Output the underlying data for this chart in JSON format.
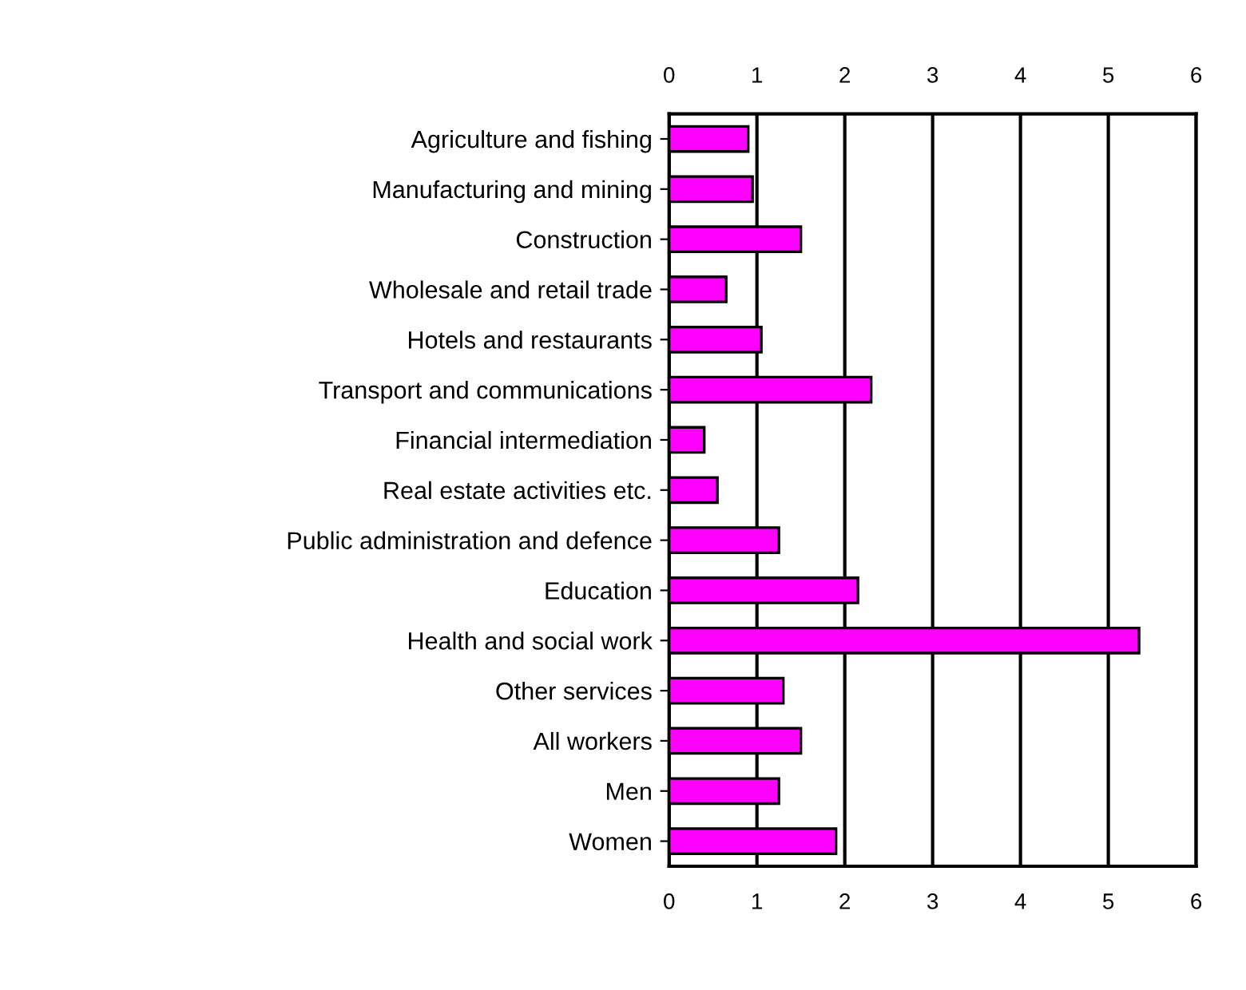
{
  "chart_data": {
    "type": "bar",
    "orientation": "horizontal",
    "categories": [
      "Agriculture and fishing",
      "Manufacturing and mining",
      "Construction",
      "Wholesale and retail trade",
      "Hotels and restaurants",
      "Transport and communications",
      "Financial intermediation",
      "Real estate activities etc.",
      "Public administration and defence",
      "Education",
      "Health and social work",
      "Other services",
      "All workers",
      "Men",
      "Women"
    ],
    "values": [
      0.9,
      0.95,
      1.5,
      0.65,
      1.05,
      2.3,
      0.4,
      0.55,
      1.25,
      2.15,
      5.35,
      1.3,
      1.5,
      1.25,
      1.9
    ],
    "color": "#ff00ff",
    "xlim": [
      0,
      6
    ],
    "xticks": [
      0,
      1,
      2,
      3,
      4,
      5,
      6
    ],
    "x2lim": [
      0,
      6
    ],
    "x2ticks": [
      0,
      1,
      2,
      3,
      4,
      5,
      6
    ],
    "grid": "x"
  }
}
